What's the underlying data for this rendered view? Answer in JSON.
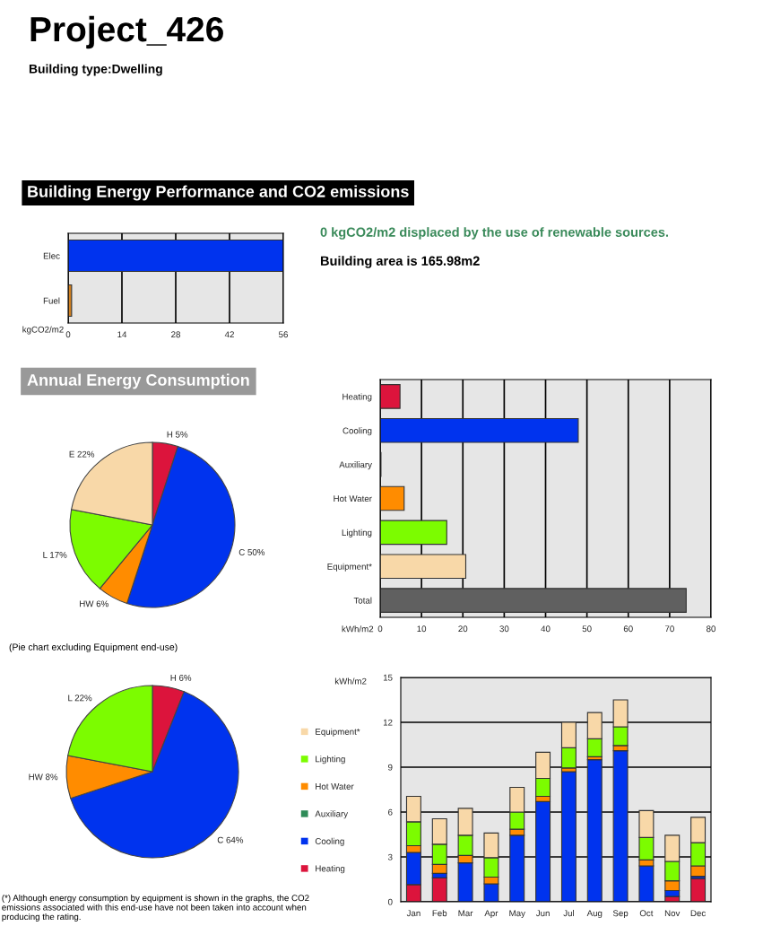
{
  "chart_data": [
    {
      "type": "bar",
      "orientation": "horizontal",
      "title": "Project_426",
      "subtitle": "Building type:Dwelling",
      "xlabel": "kgCO2/m2",
      "annotations": [
        "Building Energy Performance and CO2 emissions",
        "0 kgCO2/m2 displaced by the use of renewable sources.",
        "Building area is 165.98m2"
      ],
      "categories": [
        "Elec",
        "Fuel"
      ],
      "values": [
        56,
        0.9
      ],
      "colors": [
        "#0033ee",
        "#d08020"
      ],
      "xlim": [
        0,
        56
      ],
      "xticks": [
        0,
        14,
        28,
        42,
        56
      ],
      "grid": "x"
    },
    {
      "type": "bar",
      "orientation": "horizontal",
      "xlabel": "kWh/m2",
      "categories": [
        "Heating",
        "Cooling",
        "Auxiliary",
        "Hot Water",
        "Lighting",
        "Equipment*",
        "Total"
      ],
      "values": [
        4.8,
        47.9,
        0.2,
        5.8,
        16.1,
        20.7,
        74.0
      ],
      "colors": [
        "#dc143c",
        "#0033ee",
        "#2e8b57",
        "#ff8c00",
        "#7cfc00",
        "#f8d8a8",
        "#606060"
      ],
      "xlim": [
        0,
        80
      ],
      "xticks": [
        0,
        10,
        20,
        30,
        40,
        50,
        60,
        70,
        80
      ],
      "grid": "x"
    },
    {
      "type": "pie",
      "title": "Annual Energy Consumption",
      "categories": [
        "H",
        "C",
        "HW",
        "L",
        "E"
      ],
      "values": [
        5,
        50,
        6,
        17,
        22
      ],
      "value_labels": [
        "5%",
        "50%",
        "6%",
        "17%",
        "22%"
      ],
      "colors": [
        "#dc143c",
        "#0033ee",
        "#ff8c00",
        "#7cfc00",
        "#f8d8a8"
      ]
    },
    {
      "type": "pie",
      "title": "(Pie chart excluding Equipment end-use)",
      "annotations": [
        "(*) Although energy consumption by equipment is shown in the graphs, the CO2 emissions associated with this end-use have not been taken into account when producing the rating."
      ],
      "categories": [
        "H",
        "C",
        "HW",
        "L"
      ],
      "values": [
        6,
        64,
        8,
        22
      ],
      "value_labels": [
        "6%",
        "64%",
        "8%",
        "22%"
      ],
      "colors": [
        "#dc143c",
        "#0033ee",
        "#ff8c00",
        "#7cfc00"
      ]
    },
    {
      "type": "bar",
      "stacked": true,
      "ylabel": "kWh/m2",
      "legend": "left",
      "grid": "y",
      "categories": [
        "Jan",
        "Feb",
        "Mar",
        "Apr",
        "May",
        "Jun",
        "Jul",
        "Aug",
        "Sep",
        "Oct",
        "Nov",
        "Dec"
      ],
      "ylim": [
        0,
        15
      ],
      "yticks": [
        0,
        3,
        6,
        9,
        12,
        15
      ],
      "series": [
        {
          "name": "Heating",
          "color": "#dc143c",
          "values": [
            1.15,
            1.6,
            null,
            null,
            null,
            null,
            null,
            null,
            null,
            null,
            0.35,
            1.55
          ]
        },
        {
          "name": "Cooling",
          "color": "#0033ee",
          "values": [
            2.15,
            0.3,
            2.6,
            1.2,
            4.45,
            6.7,
            8.7,
            9.5,
            10.1,
            2.4,
            0.4,
            0.15
          ]
        },
        {
          "name": "Auxiliary",
          "color": "#2e8b57",
          "values": [
            null,
            null,
            null,
            null,
            null,
            null,
            null,
            null,
            null,
            null,
            null,
            null
          ]
        },
        {
          "name": "Hot Water",
          "color": "#ff8c00",
          "values": [
            0.45,
            0.6,
            0.5,
            0.45,
            0.4,
            0.35,
            0.25,
            0.2,
            0.35,
            0.4,
            0.65,
            0.7
          ]
        },
        {
          "name": "Lighting",
          "color": "#7cfc00",
          "values": [
            1.6,
            1.35,
            1.35,
            1.3,
            1.15,
            1.2,
            1.35,
            1.2,
            1.25,
            1.5,
            1.3,
            1.55
          ]
        },
        {
          "name": "Equipment*",
          "color": "#f8d8a8",
          "values": [
            1.7,
            1.7,
            1.8,
            1.65,
            1.65,
            1.75,
            1.7,
            1.75,
            1.8,
            1.8,
            1.75,
            1.7
          ]
        }
      ]
    }
  ]
}
